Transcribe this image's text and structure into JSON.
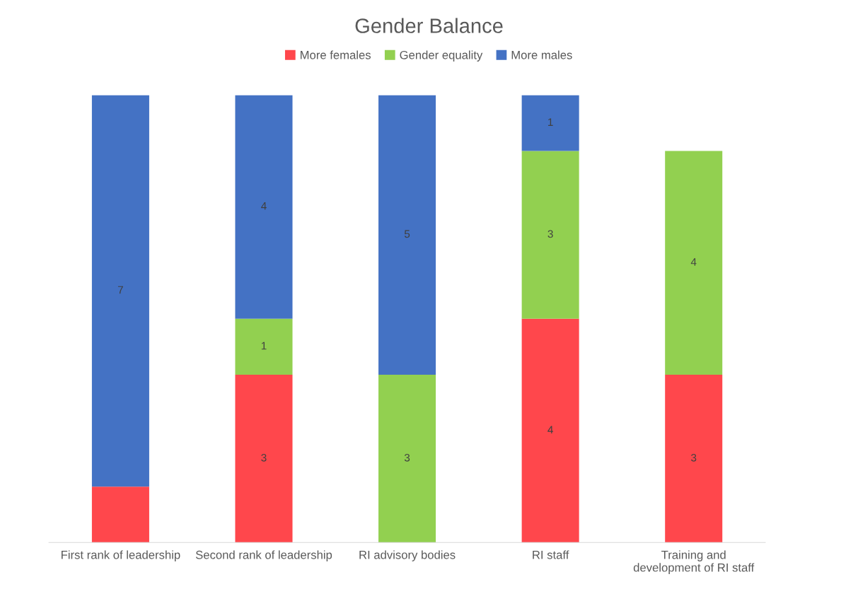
{
  "chart_data": {
    "type": "bar",
    "title": "Gender Balance",
    "stacked": true,
    "legend": "top",
    "grid": false,
    "categories": [
      "First rank of leadership",
      "Second rank of leadership",
      "RI advisory bodies",
      "RI staff",
      "Training and\ndevelopment of RI staff"
    ],
    "series": [
      {
        "name": "More females",
        "color": "#ff474c",
        "values": [
          1,
          3,
          null,
          4,
          3
        ],
        "value_labels": [
          null,
          "3",
          null,
          "4",
          "3"
        ]
      },
      {
        "name": "Gender equality",
        "color": "#92d050",
        "values": [
          null,
          1,
          3,
          3,
          4
        ],
        "value_labels": [
          null,
          "1",
          "3",
          "3",
          "4"
        ]
      },
      {
        "name": "More males",
        "color": "#4472c4",
        "values": [
          7,
          4,
          5,
          1,
          null
        ],
        "value_labels": [
          "7",
          "4",
          "5",
          "1",
          null
        ]
      }
    ]
  }
}
